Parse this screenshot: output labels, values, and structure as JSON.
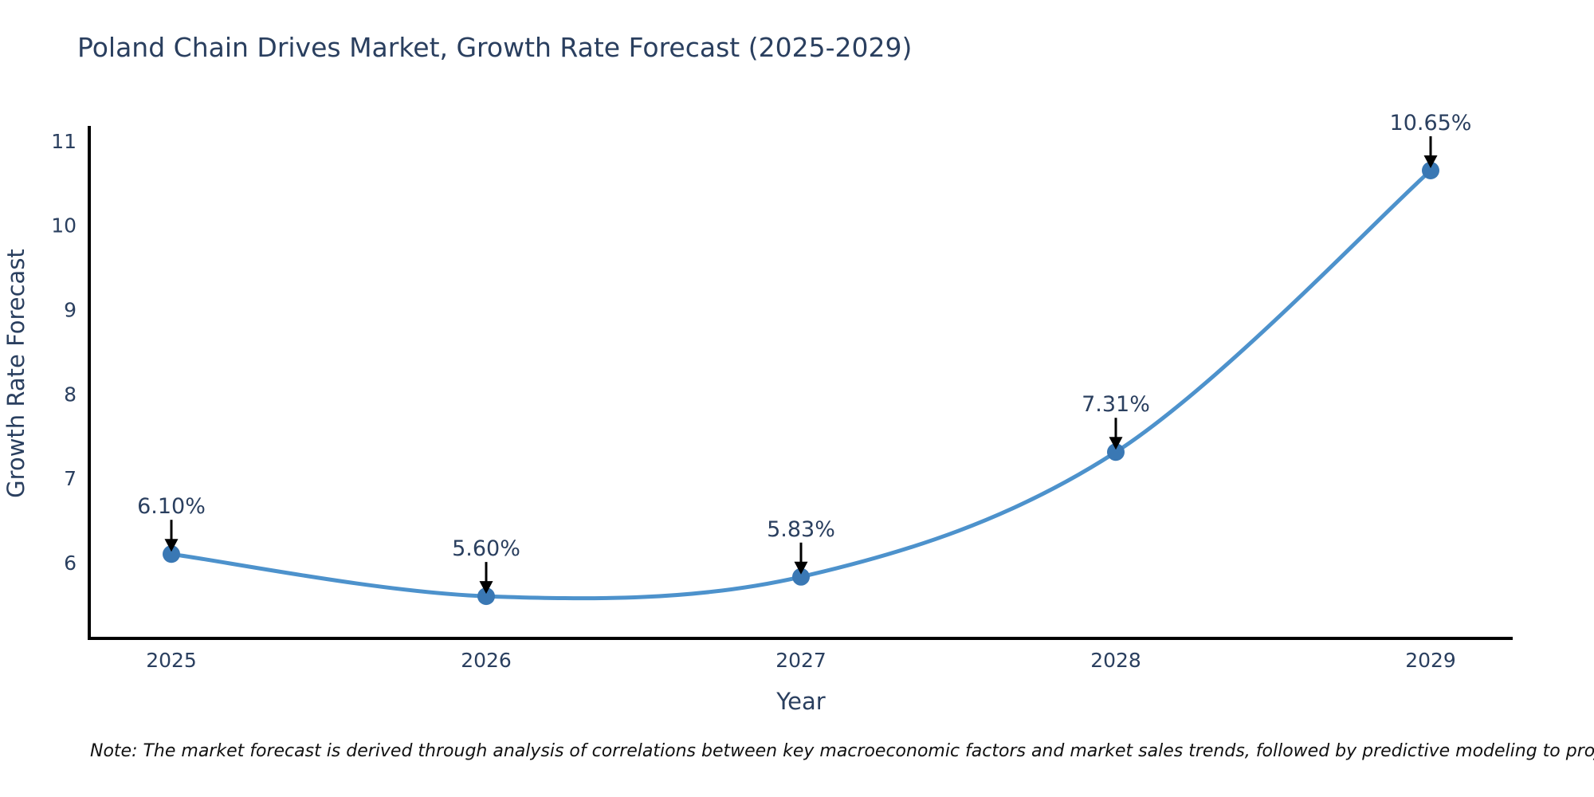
{
  "note": "Note: The market forecast is derived through analysis of correlations between key macroeconomic factors and market sales trends, followed by predictive modeling to project future sales",
  "chart_data": {
    "type": "line",
    "title": "Poland Chain Drives Market, Growth Rate Forecast (2025-2029)",
    "xlabel": "Year",
    "ylabel": "Growth Rate Forecast",
    "categories": [
      "2025",
      "2026",
      "2027",
      "2028",
      "2029"
    ],
    "values": [
      6.1,
      5.6,
      5.83,
      7.31,
      10.65
    ],
    "point_labels": [
      "6.10%",
      "5.60%",
      "5.83%",
      "7.31%",
      "10.65%"
    ],
    "yticks": [
      6,
      7,
      8,
      9,
      10,
      11
    ],
    "ylim": [
      5.1,
      11.16
    ],
    "line_shape": "spline",
    "grid": false,
    "legend": "none",
    "annotation_style": "label-above-with-down-arrow",
    "colors": {
      "line": "#4d92cc",
      "marker": "#3a78b4",
      "axis": "#000000",
      "text": "#2a3f5f",
      "annotation_text": "#2a3f5f",
      "arrow": "#000000",
      "note_text": "#111111",
      "background": "#ffffff"
    }
  }
}
